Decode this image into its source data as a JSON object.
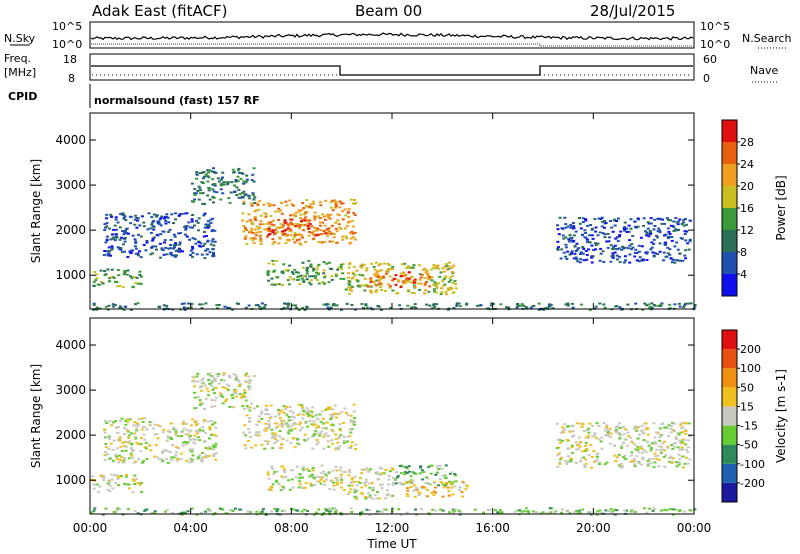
{
  "header": {
    "title": "Adak East (fitACF)",
    "beam": "Beam 00",
    "date": "28/Jul/2015"
  },
  "top_panels": {
    "nsky_label": "N.Sky",
    "nsky_ticks": [
      "10^5",
      "10^0"
    ],
    "nsearch_label": "N.Search",
    "nsearch_ticks": [
      "10^5",
      "10^0"
    ],
    "freq_label": "Freq.",
    "freq_unit": "[MHz]",
    "freq_ticks": [
      "18",
      "8"
    ],
    "nave_label": "Nave",
    "nave_ticks": [
      "60",
      "0"
    ],
    "cpid_label": "CPID",
    "cpid_text": "normalsound (fast) 157 RF"
  },
  "chart_data": [
    {
      "type": "heatmap",
      "name": "power-panel",
      "ylabel": "Slant Range [km]",
      "xlabel": "",
      "y_ticks": [
        "1000",
        "2000",
        "3000",
        "4000"
      ],
      "ylim": [
        250,
        4600
      ],
      "xlim": [
        0,
        24
      ],
      "colorbar": {
        "label": "Power [dB]",
        "ticks": [
          "4",
          "8",
          "12",
          "16",
          "20",
          "24",
          "28"
        ],
        "colors": [
          "#1010ee",
          "#2050b0",
          "#2a6e5a",
          "#3a9a3a",
          "#c8c020",
          "#f0a020",
          "#e86010",
          "#e01010"
        ]
      },
      "regions": [
        {
          "t0": 0.0,
          "t1": 2.0,
          "r0": 750,
          "r1": 1150,
          "level": 3
        },
        {
          "t0": 0.5,
          "t1": 5.0,
          "r0": 1400,
          "r1": 2400,
          "level": 1
        },
        {
          "t0": 4.0,
          "t1": 6.5,
          "r0": 2600,
          "r1": 3400,
          "level": 2
        },
        {
          "t0": 6.0,
          "t1": 10.5,
          "r0": 1700,
          "r1": 2700,
          "level": 5
        },
        {
          "t0": 7.0,
          "t1": 9.5,
          "r0": 1900,
          "r1": 2300,
          "level": 6
        },
        {
          "t0": 7.0,
          "t1": 10.0,
          "r0": 800,
          "r1": 1350,
          "level": 3
        },
        {
          "t0": 10.0,
          "t1": 14.5,
          "r0": 600,
          "r1": 1300,
          "level": 4
        },
        {
          "t0": 11.0,
          "t1": 13.5,
          "r0": 750,
          "r1": 1100,
          "level": 6
        },
        {
          "t0": 18.5,
          "t1": 23.8,
          "r0": 1300,
          "r1": 2300,
          "level": 1
        },
        {
          "t0": 0.0,
          "t1": 24.0,
          "r0": 250,
          "r1": 400,
          "level": 2
        }
      ]
    },
    {
      "type": "heatmap",
      "name": "velocity-panel",
      "ylabel": "Slant Range [km]",
      "xlabel": "Time UT",
      "x_ticks": [
        "00:00",
        "04:00",
        "08:00",
        "12:00",
        "16:00",
        "20:00",
        "00:00"
      ],
      "y_ticks": [
        "1000",
        "2000",
        "3000",
        "4000"
      ],
      "ylim": [
        250,
        4600
      ],
      "xlim": [
        0,
        24
      ],
      "colorbar": {
        "label": "Velocity [m s-1]",
        "ticks": [
          "200",
          "100",
          "50",
          "15",
          "-15",
          "-50",
          "-100",
          "-200"
        ],
        "colors": [
          "#1a1aa0",
          "#2060b0",
          "#2e8a5a",
          "#66cc33",
          "#c8c8c0",
          "#f0c020",
          "#f09010",
          "#e85010",
          "#e01010"
        ]
      },
      "regions": [
        {
          "t0": 0.0,
          "t1": 2.0,
          "r0": 750,
          "r1": 1150,
          "level": 4
        },
        {
          "t0": 0.5,
          "t1": 5.0,
          "r0": 1400,
          "r1": 2400,
          "level": 4
        },
        {
          "t0": 4.0,
          "t1": 6.5,
          "r0": 2600,
          "r1": 3400,
          "level": 4
        },
        {
          "t0": 6.0,
          "t1": 10.5,
          "r0": 1700,
          "r1": 2700,
          "level": 4
        },
        {
          "t0": 7.0,
          "t1": 10.0,
          "r0": 800,
          "r1": 1350,
          "level": 4
        },
        {
          "t0": 10.0,
          "t1": 12.0,
          "r0": 600,
          "r1": 1300,
          "level": 4
        },
        {
          "t0": 12.0,
          "t1": 14.5,
          "r0": 900,
          "r1": 1350,
          "level": 3
        },
        {
          "t0": 12.5,
          "t1": 15.0,
          "r0": 650,
          "r1": 1000,
          "level": 5
        },
        {
          "t0": 18.5,
          "t1": 23.8,
          "r0": 1300,
          "r1": 2300,
          "level": 4
        },
        {
          "t0": 0.0,
          "t1": 24.0,
          "r0": 250,
          "r1": 400,
          "level": 3
        }
      ]
    }
  ]
}
